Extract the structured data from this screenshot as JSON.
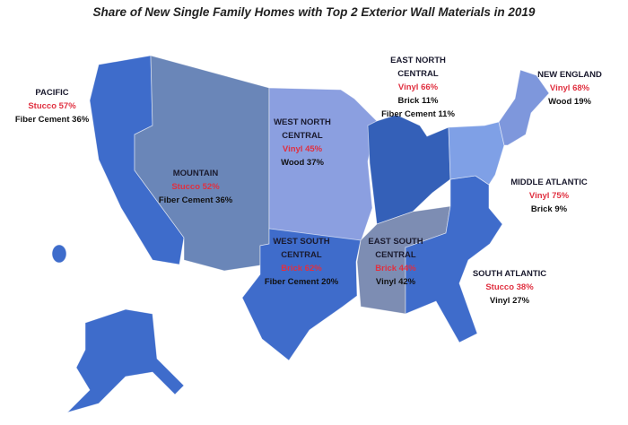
{
  "title": "Share of New Single Family Homes with Top 2 Exterior Wall Materials in 2019",
  "colors": {
    "highlight": "#e03040",
    "text": "#111111"
  },
  "regions": [
    {
      "name": "PACIFIC",
      "first": "Stucco 57%",
      "others": [
        "Fiber Cement 36%"
      ],
      "color": "#3e6ccb"
    },
    {
      "name": "MOUNTAIN",
      "first": "Stucco 52%",
      "others": [
        "Fiber Cement 36%"
      ],
      "color": "#6a86b8"
    },
    {
      "name": "WEST NORTH CENTRAL",
      "first": "Vinyl 45%",
      "others": [
        "Wood 37%"
      ],
      "color": "#8b9fe0"
    },
    {
      "name": "EAST NORTH CENTRAL",
      "first": "Vinyl 66%",
      "others": [
        "Brick 11%",
        "Fiber Cement 11%"
      ],
      "color": "#3460b8"
    },
    {
      "name": "NEW ENGLAND",
      "first": "Vinyl 68%",
      "others": [
        "Wood 19%"
      ],
      "color": "#7e97dc"
    },
    {
      "name": "MIDDLE ATLANTIC",
      "first": "Vinyl 75%",
      "others": [
        "Brick 9%"
      ],
      "color": "#7fa0e6"
    },
    {
      "name": "WEST SOUTH CENTRAL",
      "first": "Brick 62%",
      "others": [
        "Fiber Cement 20%"
      ],
      "color": "#3f6ccb"
    },
    {
      "name": "EAST SOUTH CENTRAL",
      "first": "Brick 44%",
      "others": [
        "Vinyl 42%"
      ],
      "color": "#7d8db3"
    },
    {
      "name": "SOUTH ATLANTIC",
      "first": "Stucco 38%",
      "others": [
        "Vinyl 27%"
      ],
      "color": "#3f6ccb"
    }
  ]
}
